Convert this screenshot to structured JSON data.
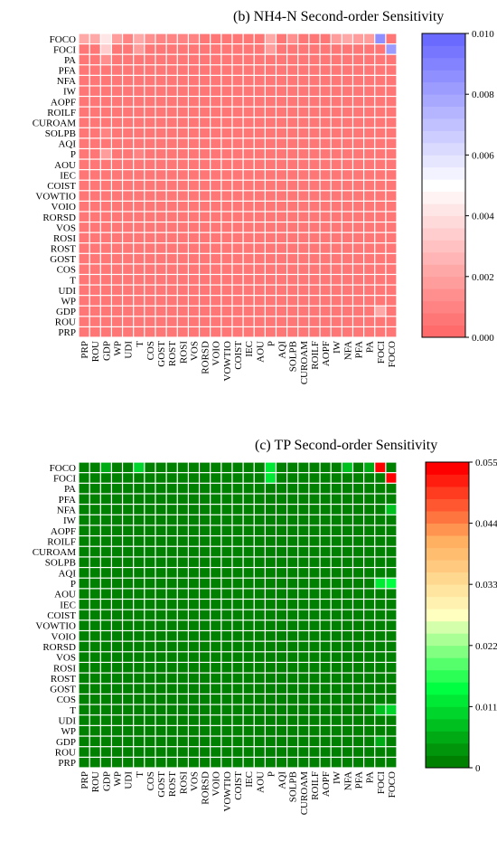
{
  "chart_data": [
    {
      "type": "heatmap",
      "title": "(b)  NH4-N Second-order Sensitivity",
      "rows": [
        "FOCO",
        "FOCI",
        "PA",
        "PFA",
        "NFA",
        "IW",
        "AOPF",
        "ROILF",
        "CUROAM",
        "SOLPB",
        "AQI",
        "P",
        "AOU",
        "IEC",
        "COIST",
        "VOWTIO",
        "VOIO",
        "RORSD",
        "VOS",
        "ROSI",
        "ROST",
        "GOST",
        "COS",
        "T",
        "UDI",
        "WP",
        "GDP",
        "ROU",
        "PRP"
      ],
      "columns": [
        "PRP",
        "ROU",
        "GDP",
        "WP",
        "UDI",
        "T",
        "COS",
        "GOST",
        "ROST",
        "ROSI",
        "VOS",
        "RORSD",
        "VOIO",
        "VOWTIO",
        "COIST",
        "IEC",
        "AOU",
        "P",
        "AQI",
        "SOLPB",
        "CUROAM",
        "ROILF",
        "AOPF",
        "IW",
        "NFA",
        "PFA",
        "PA",
        "FOCI",
        "FOCO"
      ],
      "base_value": 0.0006,
      "highlights": [
        {
          "row": "FOCO",
          "col": "PRP",
          "value": 0.0022
        },
        {
          "row": "FOCO",
          "col": "ROU",
          "value": 0.0022
        },
        {
          "row": "FOCO",
          "col": "GDP",
          "value": 0.0042
        },
        {
          "row": "FOCO",
          "col": "WP",
          "value": 0.0016
        },
        {
          "row": "FOCO",
          "col": "UDI",
          "value": 0.0012
        },
        {
          "row": "FOCO",
          "col": "T",
          "value": 0.0024
        },
        {
          "row": "FOCO",
          "col": "COS",
          "value": 0.0014
        },
        {
          "row": "FOCO",
          "col": "GOST",
          "value": 0.0012
        },
        {
          "row": "FOCO",
          "col": "ROST",
          "value": 0.0012
        },
        {
          "row": "FOCO",
          "col": "ROSI",
          "value": 0.0012
        },
        {
          "row": "FOCO",
          "col": "VOS",
          "value": 0.0012
        },
        {
          "row": "FOCO",
          "col": "P",
          "value": 0.002
        },
        {
          "row": "FOCO",
          "col": "SOLPB",
          "value": 0.0014
        },
        {
          "row": "FOCO",
          "col": "IW",
          "value": 0.0016
        },
        {
          "row": "FOCO",
          "col": "NFA",
          "value": 0.002
        },
        {
          "row": "FOCO",
          "col": "PFA",
          "value": 0.0018
        },
        {
          "row": "FOCO",
          "col": "PA",
          "value": 0.0016
        },
        {
          "row": "FOCO",
          "col": "FOCI",
          "value": 0.0085
        },
        {
          "row": "FOCI",
          "col": "GDP",
          "value": 0.0034
        },
        {
          "row": "FOCI",
          "col": "T",
          "value": 0.0018
        },
        {
          "row": "FOCI",
          "col": "P",
          "value": 0.0016
        },
        {
          "row": "FOCI",
          "col": "FOCO",
          "value": 0.008
        },
        {
          "row": "PA",
          "col": "GDP",
          "value": 0.0014
        },
        {
          "row": "P",
          "col": "GDP",
          "value": 0.0016
        },
        {
          "row": "P",
          "col": "T",
          "value": 0.0012
        },
        {
          "row": "SOLPB",
          "col": "GDP",
          "value": 0.0012
        },
        {
          "row": "GDP",
          "col": "FOCI",
          "value": 0.002
        }
      ],
      "colorbar": {
        "min": 0.0,
        "max": 0.01,
        "ticks": [
          "0.000",
          "0.002",
          "0.004",
          "0.006",
          "0.008",
          "0.010"
        ],
        "colors": {
          "low": "#ff6a6a",
          "mid": "#ffffff",
          "high": "#6a6aff"
        }
      },
      "grid": true
    },
    {
      "type": "heatmap",
      "title": "(c)  TP Second-order Sensitivity",
      "rows": [
        "FOCO",
        "FOCI",
        "PA",
        "PFA",
        "NFA",
        "IW",
        "AOPF",
        "ROILF",
        "CUROAM",
        "SOLPB",
        "AQI",
        "P",
        "AOU",
        "IEC",
        "COIST",
        "VOWTIO",
        "VOIO",
        "RORSD",
        "VOS",
        "ROSI",
        "ROST",
        "GOST",
        "COS",
        "T",
        "UDI",
        "WP",
        "GDP",
        "ROU",
        "PRP"
      ],
      "columns": [
        "PRP",
        "ROU",
        "GDP",
        "WP",
        "UDI",
        "T",
        "COS",
        "GOST",
        "ROST",
        "ROSI",
        "VOS",
        "RORSD",
        "VOIO",
        "VOWTIO",
        "COIST",
        "IEC",
        "AOU",
        "P",
        "AQI",
        "SOLPB",
        "CUROAM",
        "ROILF",
        "AOPF",
        "IW",
        "NFA",
        "PFA",
        "PA",
        "FOCI",
        "FOCO"
      ],
      "base_value": 0.002,
      "highlights": [
        {
          "row": "FOCO",
          "col": "GDP",
          "value": 0.005
        },
        {
          "row": "FOCO",
          "col": "T",
          "value": 0.01
        },
        {
          "row": "FOCO",
          "col": "P",
          "value": 0.012
        },
        {
          "row": "FOCO",
          "col": "NFA",
          "value": 0.008
        },
        {
          "row": "FOCO",
          "col": "PA",
          "value": 0.005
        },
        {
          "row": "FOCO",
          "col": "FOCI",
          "value": 0.055
        },
        {
          "row": "FOCI",
          "col": "P",
          "value": 0.011
        },
        {
          "row": "FOCI",
          "col": "FOCO",
          "value": 0.055
        },
        {
          "row": "NFA",
          "col": "FOCO",
          "value": 0.007
        },
        {
          "row": "P",
          "col": "FOCI",
          "value": 0.011
        },
        {
          "row": "P",
          "col": "FOCO",
          "value": 0.014
        },
        {
          "row": "T",
          "col": "FOCI",
          "value": 0.008
        },
        {
          "row": "T",
          "col": "FOCO",
          "value": 0.009
        },
        {
          "row": "GDP",
          "col": "FOCI",
          "value": 0.005
        }
      ],
      "colorbar": {
        "min": 0.0,
        "max": 0.055,
        "ticks": [
          "0",
          "0.011",
          "0.022",
          "0.033",
          "0.044",
          "0.055"
        ],
        "colors": {
          "low": "#008000",
          "mid1": "#00ff40",
          "mid2": "#ffffc0",
          "mid3": "#ffb060",
          "high": "#ff0000"
        }
      },
      "grid": true
    }
  ]
}
